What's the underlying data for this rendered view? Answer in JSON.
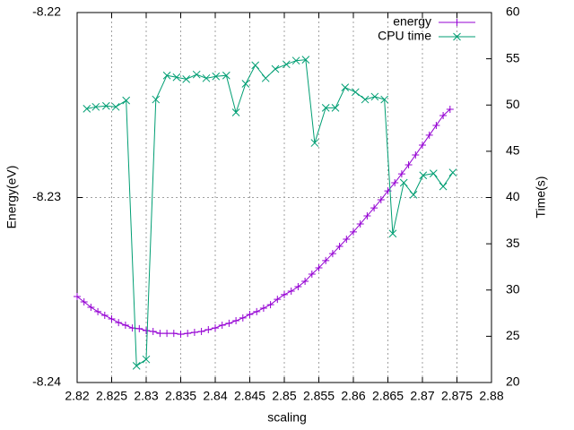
{
  "chart_data": {
    "type": "line",
    "xlabel": "scaling",
    "ylabel": "Energy(eV)",
    "y2label": "Time(s)",
    "xlim": [
      2.82,
      2.88
    ],
    "xticks": [
      2.82,
      2.825,
      2.83,
      2.835,
      2.84,
      2.845,
      2.85,
      2.855,
      2.86,
      2.865,
      2.87,
      2.875,
      2.88
    ],
    "ylim": [
      -8.24,
      -8.22
    ],
    "yticks": [
      -8.24,
      -8.23,
      -8.22
    ],
    "y2lim": [
      20,
      60
    ],
    "y2ticks": [
      20,
      25,
      30,
      35,
      40,
      45,
      50,
      55,
      60
    ],
    "grid": true,
    "legend": "top-right",
    "series": [
      {
        "name": "energy",
        "color": "#9400d3",
        "marker": "plus",
        "axis": "y",
        "x": [
          2.82,
          2.821,
          2.822,
          2.823,
          2.824,
          2.825,
          2.826,
          2.827,
          2.828,
          2.829,
          2.83,
          2.831,
          2.832,
          2.833,
          2.834,
          2.835,
          2.836,
          2.837,
          2.838,
          2.839,
          2.84,
          2.841,
          2.842,
          2.843,
          2.844,
          2.845,
          2.846,
          2.847,
          2.848,
          2.849,
          2.85,
          2.851,
          2.852,
          2.853,
          2.854,
          2.855,
          2.856,
          2.857,
          2.858,
          2.859,
          2.86,
          2.861,
          2.862,
          2.863,
          2.864,
          2.865,
          2.866,
          2.867,
          2.868,
          2.869,
          2.87,
          2.871,
          2.872,
          2.873,
          2.874
        ],
        "values": [
          -8.23535,
          -8.23564,
          -8.23593,
          -8.23617,
          -8.23637,
          -8.23656,
          -8.23676,
          -8.2369,
          -8.23705,
          -8.23709,
          -8.23719,
          -8.23724,
          -8.23734,
          -8.23734,
          -8.23734,
          -8.23739,
          -8.23734,
          -8.23729,
          -8.23724,
          -8.23714,
          -8.23705,
          -8.2369,
          -8.2368,
          -8.23666,
          -8.23651,
          -8.23632,
          -8.23617,
          -8.23598,
          -8.23579,
          -8.2355,
          -8.23525,
          -8.23506,
          -8.23482,
          -8.23453,
          -8.23414,
          -8.2338,
          -8.23341,
          -8.23303,
          -8.23264,
          -8.23225,
          -8.23186,
          -8.23143,
          -8.23099,
          -8.23056,
          -8.23012,
          -8.22964,
          -8.2292,
          -8.22872,
          -8.22823,
          -8.2277,
          -8.22717,
          -8.22663,
          -8.2261,
          -8.22557,
          -8.22523
        ]
      },
      {
        "name": "CPU time",
        "color": "#009e73",
        "marker": "cross",
        "axis": "y2",
        "x": [
          2.8214,
          2.8227,
          2.8242,
          2.8256,
          2.8271,
          2.8286,
          2.83,
          2.8314,
          2.833,
          2.8344,
          2.8358,
          2.8373,
          2.8387,
          2.8401,
          2.8416,
          2.843,
          2.8444,
          2.8458,
          2.8473,
          2.8487,
          2.8503,
          2.8517,
          2.8531,
          2.8544,
          2.856,
          2.8574,
          2.8588,
          2.8603,
          2.8617,
          2.8631,
          2.8645,
          2.8657,
          2.8673,
          2.8687,
          2.8701,
          2.8716,
          2.873,
          2.8744
        ],
        "values": [
          49.6,
          49.8,
          49.9,
          49.8,
          50.5,
          21.8,
          22.5,
          50.6,
          53.2,
          53.0,
          52.8,
          53.3,
          52.9,
          53.1,
          53.2,
          49.2,
          52.3,
          54.3,
          52.9,
          53.9,
          54.4,
          54.8,
          54.9,
          45.9,
          49.7,
          49.7,
          51.9,
          51.4,
          50.6,
          50.9,
          50.6,
          36.1,
          41.6,
          40.3,
          42.4,
          42.6,
          41.2,
          42.7
        ]
      }
    ]
  }
}
